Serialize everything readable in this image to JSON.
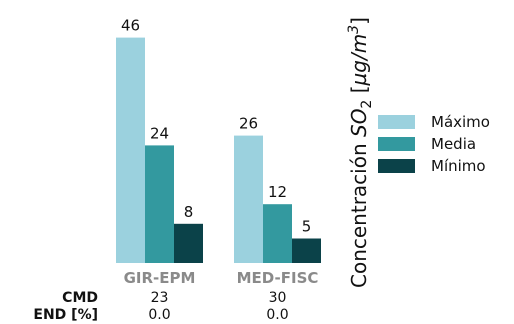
{
  "chart_data": {
    "type": "bar",
    "categories": [
      "GIR-EPM",
      "MED-FISC"
    ],
    "series": [
      {
        "name": "Máximo",
        "values": [
          46,
          26
        ],
        "color": "#9bd1de"
      },
      {
        "name": "Media",
        "values": [
          24,
          12
        ],
        "color": "#33999f"
      },
      {
        "name": "Mínimo",
        "values": [
          8,
          5
        ],
        "color": "#0b4249"
      }
    ],
    "ylabel": {
      "prefix": "Concentración ",
      "species": "SO",
      "species_sub": "2",
      "open": " [",
      "unit_mu": "µ",
      "unit_g": "g/m",
      "unit_exp": "3",
      "close": "]"
    },
    "ylim": [
      0,
      50
    ],
    "grid": false,
    "legend": "right",
    "stats": [
      {
        "label": "CMD",
        "values": [
          "23",
          "30"
        ]
      },
      {
        "label": "END [%]",
        "values": [
          "0.0",
          "0.0"
        ]
      }
    ]
  }
}
